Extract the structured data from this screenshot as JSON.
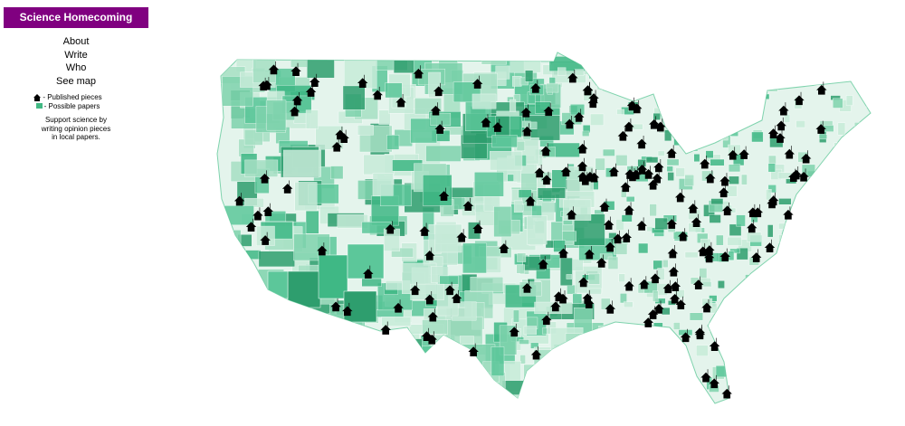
{
  "header": {
    "title": "Science Homecoming"
  },
  "nav": [
    "About",
    "Write",
    "Who",
    "See map"
  ],
  "legend": [
    "- Published pieces",
    "- Possible papers"
  ],
  "tagline": "Support science by writing opinion pieces in local papers."
}
